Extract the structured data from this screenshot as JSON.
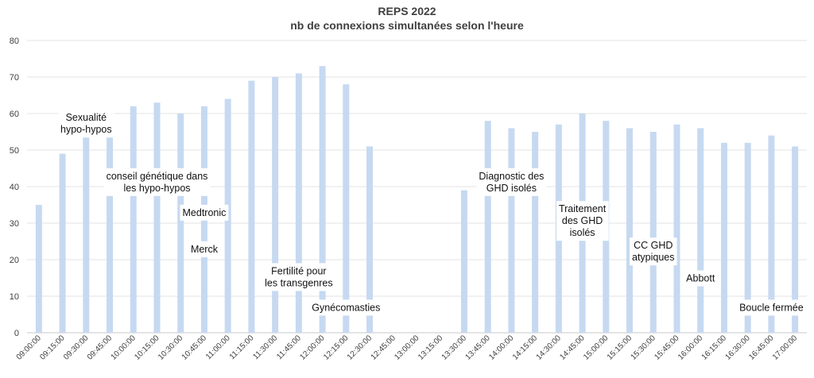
{
  "chart_data": {
    "type": "bar",
    "title": "REPS 2022",
    "subtitle": "nb de connexions simultanées selon l'heure",
    "xlabel": "",
    "ylabel": "",
    "ylim": [
      0,
      80
    ],
    "yticks": [
      0,
      10,
      20,
      30,
      40,
      50,
      60,
      70,
      80
    ],
    "grid": true,
    "bar_color": "#c6d9f1",
    "categories": [
      "09:00:00",
      "09:15:00",
      "09:30:00",
      "09:45:00",
      "10:00:00",
      "10:15:00",
      "10:30:00",
      "10:45:00",
      "11:00:00",
      "11:15:00",
      "11:30:00",
      "11:45:00",
      "12:00:00",
      "12:15:00",
      "12:30:00",
      "12:45:00",
      "13:00:00",
      "13:15:00",
      "13:30:00",
      "13:45:00",
      "14:00:00",
      "14:15:00",
      "14:30:00",
      "14:45:00",
      "15:00:00",
      "15:15:00",
      "15:30:00",
      "15:45:00",
      "16:00:00",
      "16:15:00",
      "16:30:00",
      "16:45:00",
      "17:00:00"
    ],
    "values": [
      35,
      49,
      54,
      57,
      62,
      63,
      60,
      62,
      64,
      69,
      70,
      71,
      73,
      68,
      51,
      0,
      0,
      0,
      39,
      58,
      56,
      55,
      57,
      60,
      58,
      56,
      55,
      57,
      56,
      52,
      52,
      54,
      51
    ],
    "annotations": [
      {
        "lines": [
          "Sexualité",
          "hypo-hypos"
        ],
        "category": "09:30:00",
        "y": 58
      },
      {
        "lines": [
          "conseil génétique dans",
          "les hypo-hypos"
        ],
        "category": "10:15:00",
        "y": 42
      },
      {
        "lines": [
          "Medtronic"
        ],
        "category": "10:45:00",
        "y": 32
      },
      {
        "lines": [
          "Merck"
        ],
        "category": "10:45:00",
        "y": 22
      },
      {
        "lines": [
          "Fertilité pour",
          "les transgenres"
        ],
        "category": "11:45:00",
        "y": 16
      },
      {
        "lines": [
          "Gynécomasties"
        ],
        "category": "12:15:00",
        "y": 6
      },
      {
        "lines": [
          "Diagnostic des",
          "GHD isolés"
        ],
        "category": "14:00:00",
        "y": 42
      },
      {
        "lines": [
          "Traitement",
          "des GHD",
          "isolés"
        ],
        "category": "14:45:00",
        "y": 33
      },
      {
        "lines": [
          "CC GHD",
          "atypiques"
        ],
        "category": "15:30:00",
        "y": 23
      },
      {
        "lines": [
          "Abbott"
        ],
        "category": "16:00:00",
        "y": 14
      },
      {
        "lines": [
          "Boucle fermée"
        ],
        "category": "16:45:00",
        "y": 6
      }
    ]
  }
}
